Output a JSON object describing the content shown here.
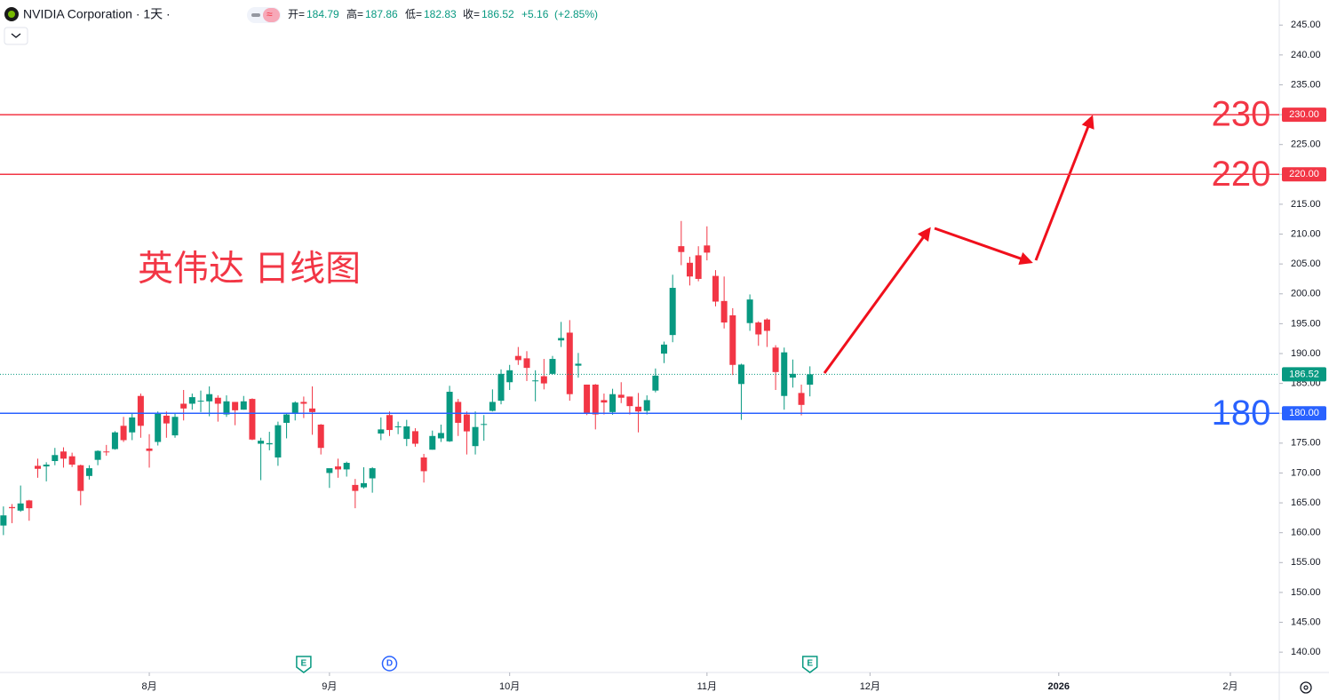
{
  "header": {
    "symbol": "NVIDIA Corporation · 1天 ·",
    "open_label": "开=",
    "high_label": "高=",
    "low_label": "低=",
    "close_label": "收=",
    "change": "+5.16",
    "change_pct": "(+2.85%)"
  },
  "chart_data": {
    "type": "candlestick",
    "annotation": "英伟达 日线图",
    "up_color": "#089981",
    "down_color": "#f23645",
    "open": [
      161.2,
      164.3,
      163.7,
      165.4,
      171.2,
      171.1,
      172.0,
      173.6,
      172.8,
      171.3,
      169.5,
      172.2,
      173.6,
      174.0,
      177.9,
      176.8,
      182.9,
      174.1,
      175.2,
      179.6,
      176.3,
      181.6,
      181.6,
      182.1,
      182.0,
      182.6,
      179.8,
      181.9,
      180.6,
      182.4,
      174.9,
      174.8,
      172.6,
      178.4,
      180.1,
      181.9,
      180.8,
      178.1,
      170.0,
      171.1,
      170.6,
      168.0,
      167.6,
      169.1,
      176.6,
      179.7,
      177.8,
      175.7,
      177.0,
      172.6,
      173.9,
      175.8,
      175.3,
      181.9,
      179.8,
      174.5,
      178.2,
      180.4,
      182.1,
      185.2,
      189.6,
      189.2,
      185.5,
      186.2,
      186.6,
      192.2,
      193.5,
      187.97,
      184.8,
      184.8,
      182.2,
      180.2,
      183.1,
      182.8,
      181.1,
      180.4,
      183.8,
      189.99,
      193.1,
      207.98,
      205.2,
      206.45,
      208.1,
      203.0,
      198.8,
      196.4,
      184.9,
      195.1,
      195.2,
      195.7,
      191.0,
      182.9,
      185.97,
      183.4,
      184.79
    ],
    "high": [
      164.4,
      164.8,
      167.9,
      165.5,
      172.4,
      171.8,
      174.2,
      174.3,
      173.4,
      171.4,
      171.3,
      173.8,
      174.7,
      177.0,
      179.4,
      179.9,
      183.3,
      176.5,
      180.3,
      180.3,
      179.9,
      183.9,
      183.3,
      183.8,
      184.5,
      183.0,
      183.0,
      181.9,
      182.9,
      182.5,
      175.9,
      176.9,
      178.6,
      180.0,
      182.0,
      182.8,
      184.5,
      178.2,
      170.4,
      172.4,
      171.9,
      169.0,
      170.96,
      170.98,
      179.3,
      180.3,
      178.6,
      178.9,
      177.5,
      173.2,
      177.1,
      178.1,
      184.6,
      182.4,
      180.3,
      180.3,
      179.7,
      184.0,
      187.35,
      188.1,
      191.1,
      190.4,
      187.2,
      189.1,
      189.6,
      195.3,
      195.6,
      190.1,
      184.8,
      184.9,
      183.3,
      184.1,
      185.2,
      182.8,
      183.4,
      183.0,
      187.5,
      192.0,
      203.2,
      212.2,
      206.2,
      207.97,
      211.3,
      203.97,
      202.9,
      197.6,
      188.3,
      199.9,
      195.4,
      195.9,
      191.4,
      191.0,
      189.0,
      184.8,
      187.86
    ],
    "low": [
      159.6,
      161.6,
      163.5,
      162.0,
      169.2,
      168.6,
      171.3,
      170.9,
      171.0,
      164.6,
      168.9,
      171.3,
      172.9,
      173.9,
      175.2,
      175.5,
      175.9,
      170.9,
      174.6,
      175.9,
      175.9,
      178.8,
      180.6,
      180.2,
      179.5,
      178.6,
      179.4,
      178.0,
      180.6,
      175.5,
      168.8,
      173.8,
      171.2,
      175.8,
      178.8,
      179.2,
      176.4,
      173.1,
      167.5,
      169.2,
      169.4,
      164.1,
      167.4,
      166.7,
      175.5,
      176.2,
      176.5,
      174.5,
      174.4,
      168.4,
      173.9,
      175.2,
      175.2,
      176.2,
      173.1,
      173.1,
      175.4,
      180.3,
      181.5,
      183.9,
      188.1,
      185.4,
      182.0,
      184.0,
      186.5,
      191.1,
      182.1,
      185.96,
      179.7,
      177.3,
      179.8,
      179.75,
      181.7,
      179.8,
      176.8,
      179.8,
      183.5,
      188.4,
      191.9,
      204.8,
      201.4,
      202.1,
      205.6,
      197.9,
      194.2,
      186.4,
      178.9,
      193.8,
      191.3,
      191.1,
      183.9,
      180.6,
      184.3,
      179.65,
      182.83
    ],
    "close": [
      162.9,
      164.1,
      164.9,
      164.1,
      170.7,
      171.4,
      173.0,
      172.4,
      171.4,
      167.0,
      170.8,
      173.7,
      173.5,
      176.8,
      175.5,
      179.3,
      177.9,
      173.7,
      180.0,
      178.3,
      179.4,
      180.8,
      182.7,
      182.1,
      183.2,
      181.6,
      182.0,
      180.5,
      182.0,
      175.6,
      175.4,
      175.0,
      178.0,
      179.8,
      181.8,
      181.6,
      180.2,
      174.2,
      170.8,
      170.6,
      171.7,
      167.0,
      168.3,
      170.8,
      177.3,
      177.2,
      177.8,
      177.8,
      174.9,
      170.3,
      176.2,
      176.7,
      183.6,
      178.4,
      176.97,
      177.7,
      178.2,
      181.9,
      186.6,
      187.2,
      188.9,
      187.6,
      185.5,
      185.0,
      189.1,
      192.6,
      183.2,
      188.3,
      180.0,
      179.8,
      181.8,
      183.2,
      182.6,
      181.2,
      180.3,
      182.2,
      186.3,
      191.5,
      201.0,
      207.0,
      202.9,
      202.5,
      206.9,
      198.7,
      195.2,
      188.1,
      188.15,
      199.05,
      193.2,
      193.8,
      186.9,
      190.2,
      186.6,
      181.4,
      186.52
    ],
    "ylim": [
      136.6,
      249.2
    ],
    "yticks": [
      {
        "value": 245,
        "label": "245.00"
      },
      {
        "value": 240,
        "label": "240.00"
      },
      {
        "value": 235,
        "label": "235.00"
      },
      {
        "value": 230,
        "label": "230.00"
      },
      {
        "value": 225,
        "label": "225.00"
      },
      {
        "value": 220,
        "label": "220.00"
      },
      {
        "value": 215,
        "label": "215.00"
      },
      {
        "value": 210,
        "label": "210.00"
      },
      {
        "value": 205,
        "label": "205.00"
      },
      {
        "value": 200,
        "label": "200.00"
      },
      {
        "value": 195,
        "label": "195.00"
      },
      {
        "value": 190,
        "label": "190.00"
      },
      {
        "value": 185,
        "label": "185.00"
      },
      {
        "value": 180,
        "label": "180.00"
      },
      {
        "value": 175,
        "label": "175.00"
      },
      {
        "value": 170,
        "label": "170.00"
      },
      {
        "value": 165,
        "label": "165.00"
      },
      {
        "value": 160,
        "label": "160.00"
      },
      {
        "value": 155,
        "label": "155.00"
      },
      {
        "value": 150,
        "label": "150.00"
      },
      {
        "value": 145,
        "label": "145.00"
      },
      {
        "value": 140,
        "label": "140.00"
      }
    ],
    "xlim": [
      -0.4,
      148.7
    ],
    "xticks": [
      {
        "value": 17,
        "label": "8月"
      },
      {
        "value": 38,
        "label": "9月"
      },
      {
        "value": 59,
        "label": "10月"
      },
      {
        "value": 82,
        "label": "11月"
      },
      {
        "value": 101,
        "label": "12月"
      },
      {
        "value": 123,
        "label": "2026"
      },
      {
        "value": 143,
        "label": "2月"
      }
    ],
    "levels": [
      {
        "value": 230,
        "label": "230.00",
        "color": "#f23645"
      },
      {
        "value": 220,
        "label": "220.00",
        "color": "#f23645"
      },
      {
        "value": 180,
        "label": "180.00",
        "color": "#2962ff"
      }
    ],
    "events": [
      {
        "index": 35,
        "label": "E",
        "color": "#089981"
      },
      {
        "index": 45,
        "label": "D",
        "color": "#2962ff"
      },
      {
        "index": 94,
        "label": "E",
        "color": "#089981"
      }
    ]
  }
}
